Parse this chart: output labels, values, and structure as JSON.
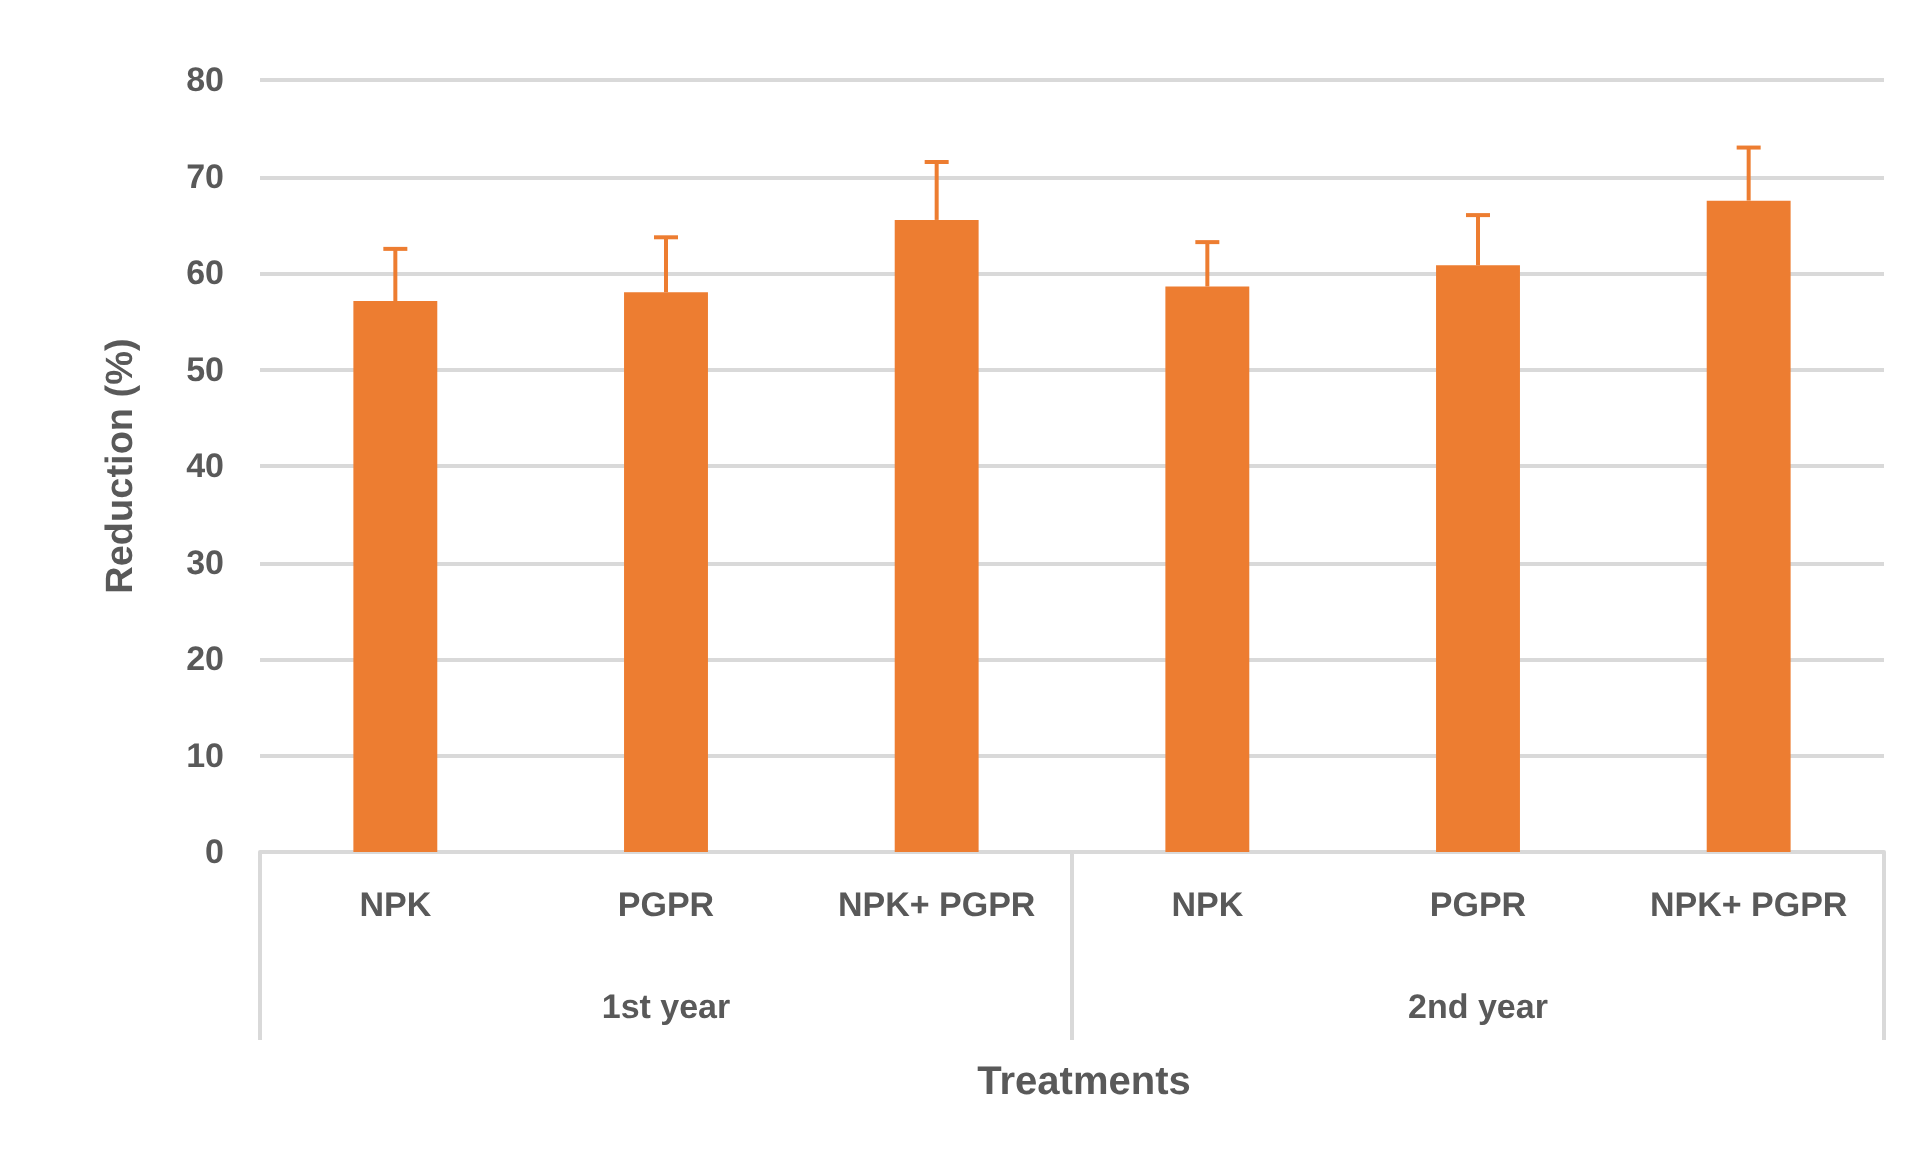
{
  "chart_data": {
    "type": "bar",
    "xlabel": "Treatments",
    "ylabel": "Reduction (%)",
    "categories": [
      "NPK",
      "PGPR",
      "NPK+ PGPR",
      "NPK",
      "PGPR",
      "NPK+ PGPR"
    ],
    "annotations": [
      "1st year",
      "2nd year"
    ],
    "series": [
      {
        "color": "#ed7d31",
        "values": [
          57.1,
          58.0,
          65.5,
          58.6,
          60.8,
          67.5
        ],
        "errors": [
          [
            57.1,
            62.5
          ],
          [
            58.0,
            63.7
          ],
          [
            65.5,
            71.5
          ],
          [
            58.6,
            63.2
          ],
          [
            60.8,
            66.0
          ],
          [
            67.5,
            73.0
          ]
        ]
      }
    ],
    "ylim": [
      0,
      80
    ],
    "yticks": [
      0,
      10,
      20,
      30,
      40,
      50,
      60,
      70,
      80
    ],
    "grid": "y"
  }
}
